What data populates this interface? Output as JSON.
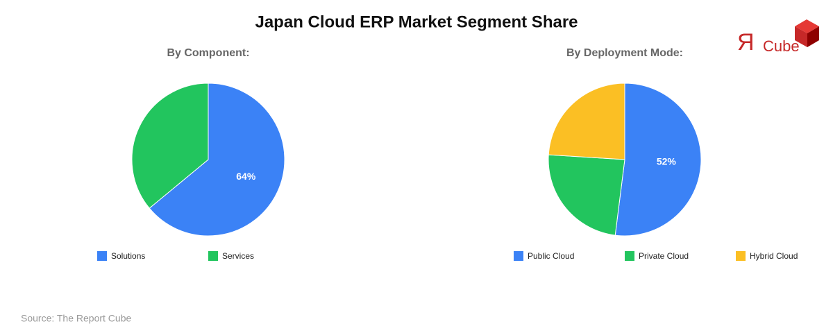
{
  "header": {
    "title": "Japan Cloud ERP Market Segment Share"
  },
  "logo": {
    "mark": "Я",
    "text": "Cube"
  },
  "chart_data": [
    {
      "type": "pie",
      "title": "By Component:",
      "categories": [
        "Solutions",
        "Services"
      ],
      "values": [
        64,
        36
      ],
      "value_labels": [
        "64%",
        null
      ],
      "colors": [
        "#3b82f6",
        "#22c55e"
      ]
    },
    {
      "type": "pie",
      "title": "By Deployment Mode:",
      "categories": [
        "Public Cloud",
        "Private Cloud",
        "Hybrid Cloud"
      ],
      "values": [
        52,
        24,
        24
      ],
      "value_labels": [
        "52%",
        null,
        null
      ],
      "colors": [
        "#3b82f6",
        "#22c55e",
        "#fbbf24"
      ]
    }
  ],
  "source": "Source: The Report Cube"
}
